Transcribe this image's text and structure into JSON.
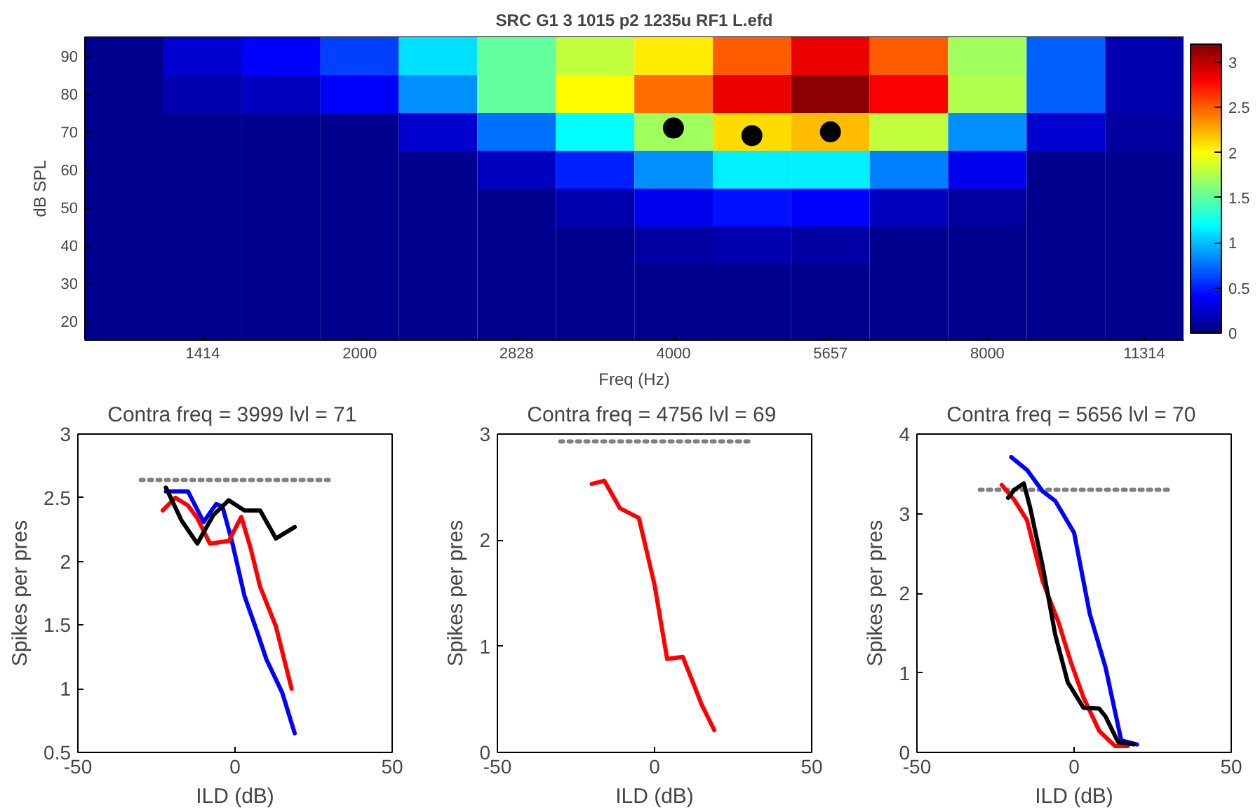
{
  "chart_data": [
    {
      "type": "heatmap",
      "title": "SRC G1 3 1015 p2 1235u RF1 L.efd",
      "xlabel": "Freq (Hz)",
      "log": "x",
      "tick_labels": "x",
      "x": [
        1189,
        1414,
        1682,
        2000,
        2378,
        2828,
        3364,
        4000,
        4757,
        5657,
        6727,
        8000,
        9514,
        11314
      ],
      "xlim": [
        1090,
        12338
      ],
      "xticks": [
        1414,
        2000,
        2828,
        4000,
        5657,
        8000,
        11314
      ],
      "y_categories": [
        "90",
        "80",
        "70",
        "60",
        "50",
        "40",
        "30",
        "20"
      ],
      "cells": [
        [
          0.05,
          0.25,
          0.4,
          0.6,
          1.1,
          1.5,
          1.8,
          2.05,
          2.5,
          2.85,
          2.5,
          1.7,
          0.7,
          0.15
        ],
        [
          0.05,
          0.15,
          0.2,
          0.4,
          0.85,
          1.5,
          2.0,
          2.45,
          2.85,
          3.15,
          2.8,
          1.75,
          0.7,
          0.15
        ],
        [
          0.05,
          0.05,
          0.05,
          0.05,
          0.25,
          0.75,
          1.2,
          1.7,
          2.1,
          2.2,
          1.8,
          0.85,
          0.25,
          0.1
        ],
        [
          0.05,
          0.05,
          0.05,
          0.05,
          0.05,
          0.2,
          0.5,
          0.85,
          1.15,
          1.15,
          0.8,
          0.35,
          0.05,
          0.05
        ],
        [
          0.05,
          0.05,
          0.05,
          0.05,
          0.05,
          0.05,
          0.15,
          0.35,
          0.45,
          0.4,
          0.2,
          0.1,
          0.05,
          0.05
        ],
        [
          0.05,
          0.05,
          0.05,
          0.05,
          0.05,
          0.05,
          0.05,
          0.12,
          0.15,
          0.12,
          0.05,
          0.05,
          0.05,
          0.05
        ],
        [
          0.05,
          0.05,
          0.05,
          0.05,
          0.05,
          0.05,
          0.05,
          0.05,
          0.05,
          0.05,
          0.05,
          0.05,
          0.05,
          0.05
        ],
        [
          0.05,
          0.05,
          0.05,
          0.05,
          0.05,
          0.05,
          0.05,
          0.05,
          0.05,
          0.05,
          0.05,
          0.05,
          0.05,
          0.05
        ]
      ],
      "clim": [
        0,
        3.2
      ],
      "cticks": [
        0,
        0.5,
        1,
        1.5,
        2,
        2.5,
        3
      ]
    },
    {
      "type": "scatter",
      "marker": "circle",
      "color": "#000000",
      "log": "x",
      "tick_labels": "y",
      "ylabel": "dB SPL",
      "xlim": [
        1090,
        12338
      ],
      "ylim": [
        15,
        95
      ],
      "yticks": [
        20,
        30,
        40,
        50,
        60,
        70,
        80,
        90
      ],
      "x": [
        3999,
        4756,
        5656
      ],
      "values": [
        71,
        69,
        70
      ]
    },
    {
      "type": "line",
      "title": "Contra freq = 3999  lvl = 71",
      "xlabel": "ILD (dB)",
      "ylabel": "Spikes per pres",
      "xlim": [
        -50,
        50
      ],
      "xticks": [
        -50,
        0,
        50
      ],
      "ylim": [
        0.5,
        3
      ],
      "yticks": [
        0.5,
        1,
        1.5,
        2,
        2.5,
        3
      ],
      "series": [
        {
          "color": "#808080",
          "line_style": "dotted",
          "x": [
            -30,
            30
          ],
          "values": [
            2.64,
            2.64
          ]
        },
        {
          "color": "#0000ff",
          "x": [
            -22,
            -15,
            -10,
            -6,
            -4,
            -1,
            3,
            7,
            10,
            15,
            19
          ],
          "values": [
            2.55,
            2.55,
            2.31,
            2.45,
            2.43,
            2.16,
            1.73,
            1.45,
            1.23,
            0.97,
            0.65
          ]
        },
        {
          "color": "#ff0000",
          "x": [
            -23,
            -19,
            -15,
            -12,
            -8,
            -2,
            2,
            5,
            8,
            13,
            18
          ],
          "values": [
            2.4,
            2.5,
            2.44,
            2.34,
            2.14,
            2.16,
            2.35,
            2.1,
            1.8,
            1.49,
            1.0
          ]
        },
        {
          "color": "#000000",
          "x": [
            -22,
            -17,
            -12,
            -7,
            -2,
            3,
            8,
            13,
            19
          ],
          "values": [
            2.58,
            2.32,
            2.14,
            2.36,
            2.48,
            2.4,
            2.4,
            2.18,
            2.27
          ]
        }
      ]
    },
    {
      "type": "line",
      "title": "Contra freq = 4756  lvl = 69",
      "xlabel": "ILD (dB)",
      "ylabel": "Spikes per pres",
      "xlim": [
        -50,
        50
      ],
      "xticks": [
        -50,
        0,
        50
      ],
      "ylim": [
        0,
        3
      ],
      "yticks": [
        0,
        1,
        2,
        3
      ],
      "series": [
        {
          "color": "#808080",
          "line_style": "dotted",
          "x": [
            -30,
            30
          ],
          "values": [
            2.93,
            2.93
          ]
        },
        {
          "color": "#ff0000",
          "x": [
            -20,
            -16,
            -11,
            -5,
            0,
            4,
            9,
            15,
            19
          ],
          "values": [
            2.53,
            2.56,
            2.3,
            2.21,
            1.58,
            0.88,
            0.9,
            0.45,
            0.21
          ]
        }
      ]
    },
    {
      "type": "line",
      "title": "Contra freq = 5656  lvl = 70",
      "xlabel": "ILD (dB)",
      "ylabel": "Spikes per pres",
      "xlim": [
        -50,
        50
      ],
      "xticks": [
        -50,
        0,
        50
      ],
      "ylim": [
        0,
        4
      ],
      "yticks": [
        0,
        1,
        2,
        3,
        4
      ],
      "series": [
        {
          "color": "#808080",
          "line_style": "dotted",
          "x": [
            -30,
            30
          ],
          "values": [
            3.3,
            3.3
          ]
        },
        {
          "color": "#0000ff",
          "x": [
            -20,
            -15,
            -10,
            -6,
            0,
            5,
            10,
            15,
            20
          ],
          "values": [
            3.71,
            3.55,
            3.28,
            3.16,
            2.76,
            1.74,
            1.07,
            0.15,
            0.1
          ]
        },
        {
          "color": "#ff0000",
          "x": [
            -23,
            -19,
            -15,
            -10,
            -5,
            -1,
            3,
            8,
            13,
            17
          ],
          "values": [
            3.36,
            3.17,
            2.92,
            2.15,
            1.64,
            1.13,
            0.69,
            0.27,
            0.08,
            0.08
          ]
        },
        {
          "color": "#000000",
          "x": [
            -21,
            -19,
            -16,
            -14,
            -10,
            -6,
            -2,
            3,
            8,
            10,
            14,
            19
          ],
          "values": [
            3.2,
            3.3,
            3.38,
            3.08,
            2.34,
            1.48,
            0.88,
            0.56,
            0.55,
            0.45,
            0.13,
            0.1
          ]
        }
      ]
    }
  ]
}
